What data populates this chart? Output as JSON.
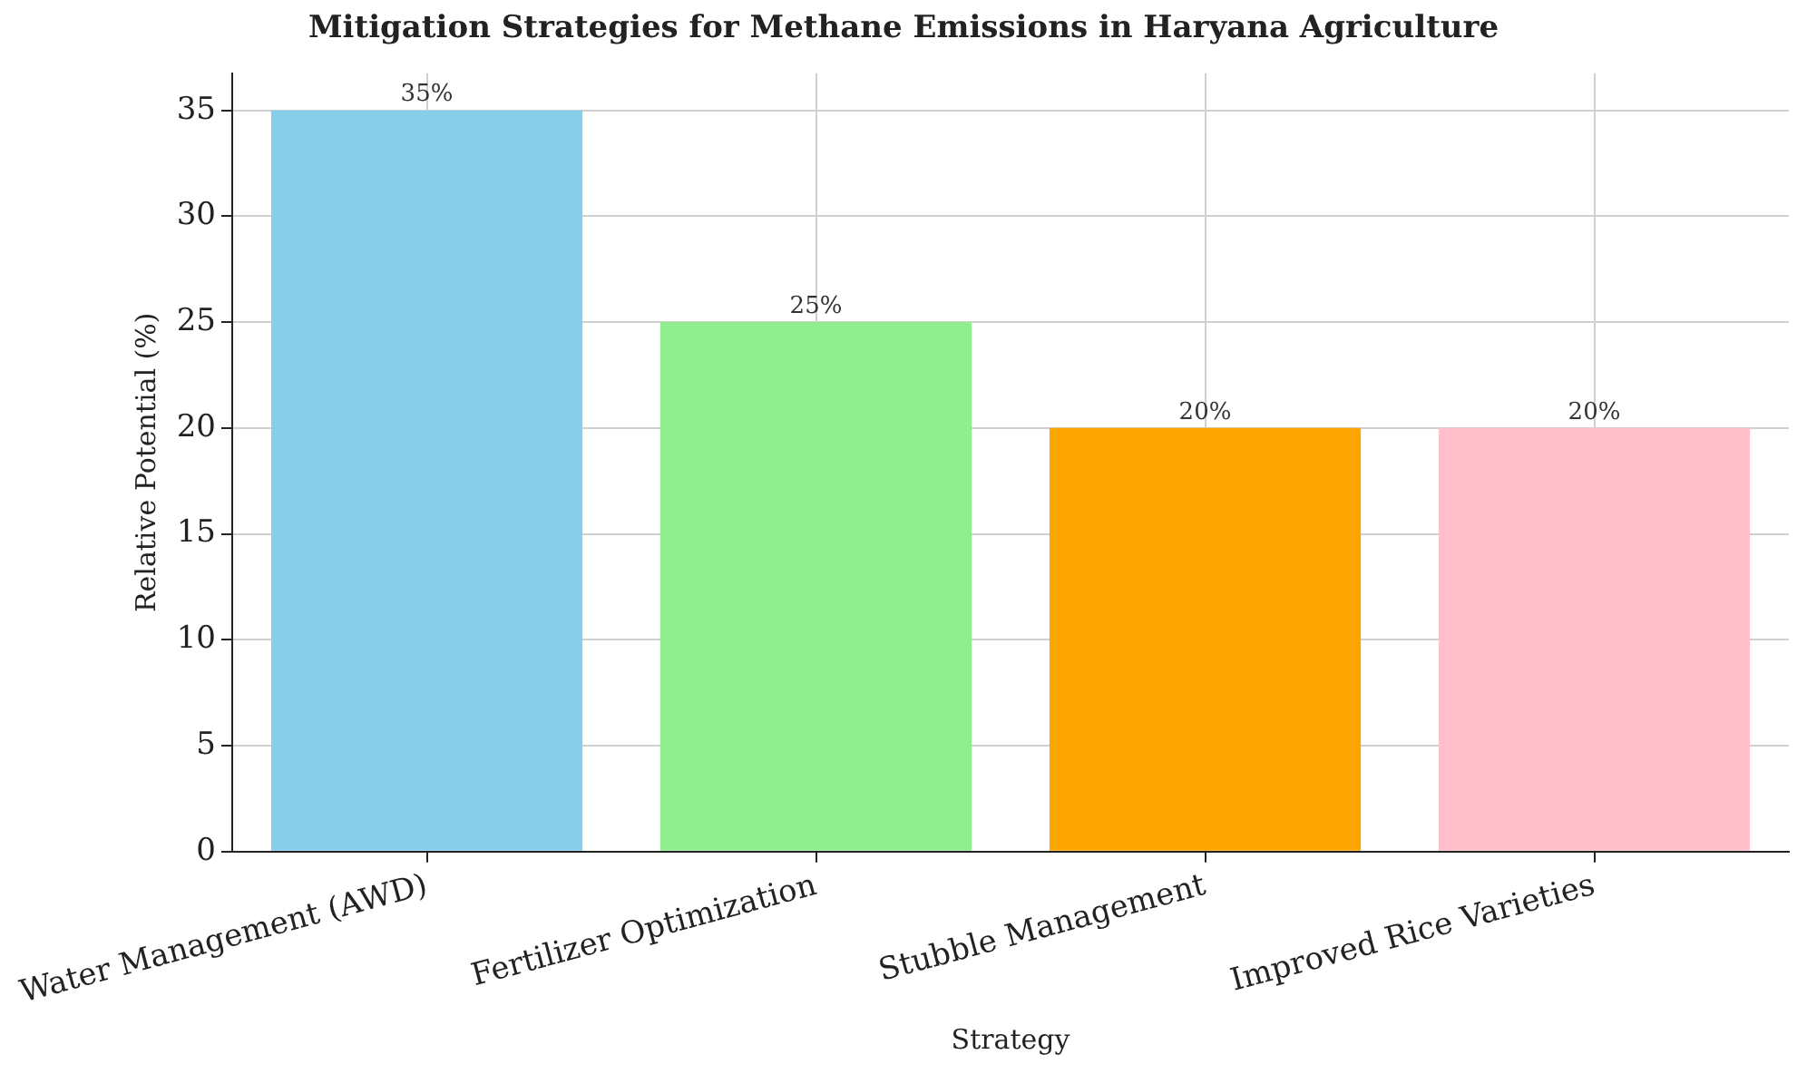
{
  "chart_data": {
    "type": "bar",
    "title": "Mitigation Strategies for Methane Emissions in Haryana Agriculture",
    "xlabel": "Strategy",
    "ylabel": "Relative Potential (%)",
    "categories": [
      "Water Management (AWD)",
      "Fertilizer Optimization",
      "Stubble Management",
      "Improved Rice Varieties"
    ],
    "values": [
      35,
      25,
      20,
      20
    ],
    "colors": [
      "#87ceeb",
      "#90ee90",
      "#ffa500",
      "#ffc0cb"
    ],
    "value_labels": [
      "35%",
      "25%",
      "20%",
      "20%"
    ],
    "ylim": [
      0,
      36.75
    ],
    "yticks": [
      0,
      5,
      10,
      15,
      20,
      25,
      30,
      35
    ],
    "grid": true,
    "legend": false
  }
}
